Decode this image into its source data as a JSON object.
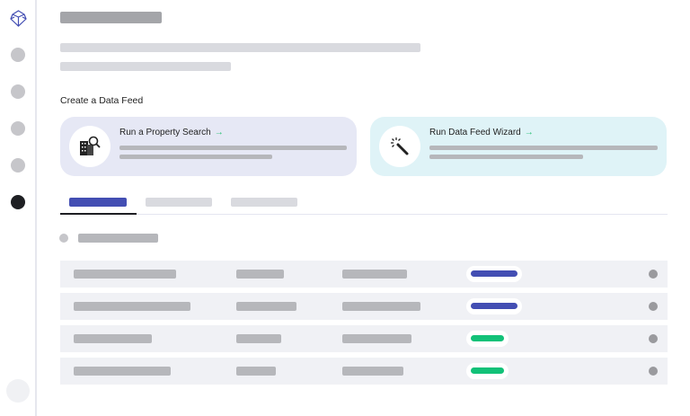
{
  "section_title": "Create a Data Feed",
  "cards": [
    {
      "title": "Run a Property Search",
      "icon": "building-search-icon",
      "bg": "#e6e8f5"
    },
    {
      "title": "Run Data Feed Wizard",
      "icon": "magic-wand-icon",
      "bg": "#dff3f7"
    }
  ],
  "arrow": "→",
  "colors": {
    "accent": "#434eb3",
    "success": "#12c178",
    "arrow": "#1fbf6e"
  },
  "rows": [
    {
      "status": "blue"
    },
    {
      "status": "blue"
    },
    {
      "status": "green"
    },
    {
      "status": "green"
    }
  ]
}
